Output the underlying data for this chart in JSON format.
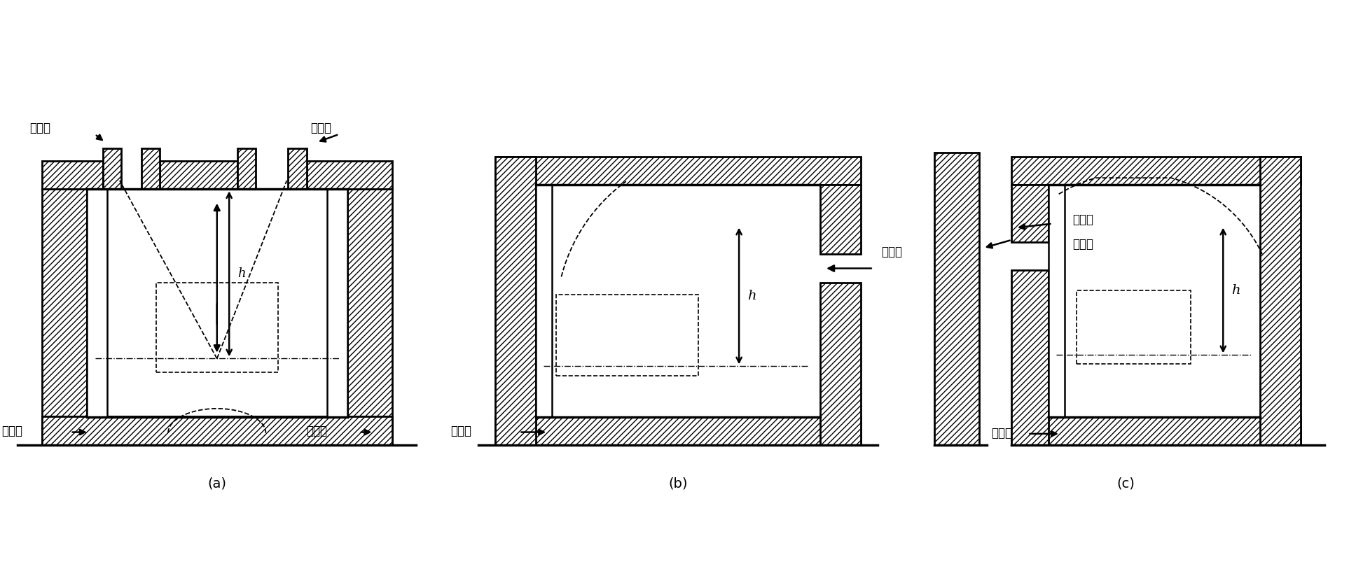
{
  "bg_color": "#ffffff",
  "line_color": "#000000",
  "label_a": "(a)",
  "label_b": "(b)",
  "label_c": "(c)",
  "text_chufengkou": "出风口",
  "text_jinfengkou": "进风口",
  "text_h": "h",
  "figsize": [
    19.36,
    8.26
  ],
  "dpi": 100
}
